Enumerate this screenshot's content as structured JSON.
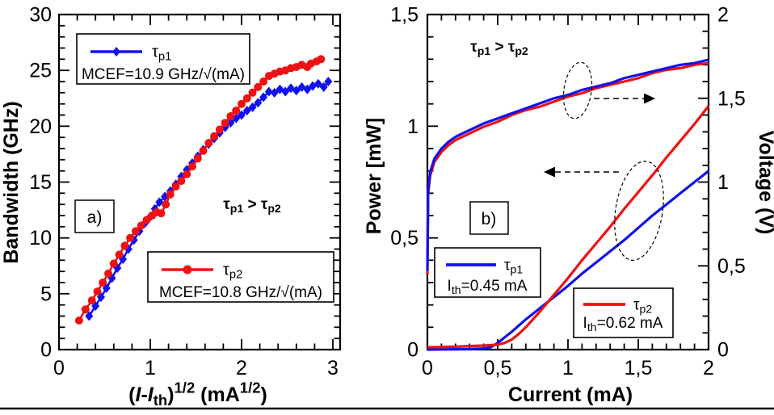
{
  "figure": {
    "description": "Two-panel laser characterization figure",
    "colors": {
      "series_blue": "#1111ee",
      "series_red": "#ee1111",
      "axis": "#000000",
      "background": "#ffffff"
    }
  },
  "chart_data": [
    {
      "id": "a",
      "type": "line",
      "panel_label": "a)",
      "ylabel": "Bandwidth (GHz)",
      "xlabel_plain": "(I-Ith)^1/2 (mA^1/2)",
      "xlabel_rich": [
        {
          "t": "("
        },
        {
          "t": "I",
          "m": "i"
        },
        {
          "t": "-"
        },
        {
          "t": "I",
          "m": "i"
        },
        {
          "t": "th",
          "m": "sub"
        },
        {
          "t": ")"
        },
        {
          "t": "1/2",
          "m": "sup"
        },
        {
          "t": " (mA"
        },
        {
          "t": "1/2",
          "m": "sup"
        },
        {
          "t": ")"
        }
      ],
      "annotation_plain": "τp1 > τp2",
      "annotation_rich": [
        {
          "t": "τ"
        },
        {
          "t": "p1",
          "m": "sub"
        },
        {
          "t": " > "
        },
        {
          "t": "τ"
        },
        {
          "t": "p2",
          "m": "sub"
        }
      ],
      "xlim": [
        0,
        3.08
      ],
      "ylim": [
        0,
        30
      ],
      "x_major_ticks": [
        0,
        1,
        2,
        3
      ],
      "x_tick_labels": [
        "0",
        "1",
        "2",
        "3"
      ],
      "x_minor_step": 0.2,
      "y_major_ticks": [
        0,
        5,
        10,
        15,
        20,
        25,
        30
      ],
      "y_tick_labels": [
        "0",
        "5",
        "10",
        "15",
        "20",
        "25",
        "30"
      ],
      "y_minor_step": 1,
      "grid": false,
      "legend_positions": [
        "upper-left",
        "lower-middle"
      ],
      "series": [
        {
          "name": "τp1",
          "name_rich": [
            {
              "t": "τ"
            },
            {
              "t": "p1",
              "m": "sub"
            }
          ],
          "note": "MCEF=10.9 GHz/√(mA)",
          "color": "#1111ee",
          "marker": "diamond",
          "points": [
            [
              0.33,
              3.0
            ],
            [
              0.4,
              3.9
            ],
            [
              0.46,
              4.7
            ],
            [
              0.52,
              5.5
            ],
            [
              0.58,
              6.4
            ],
            [
              0.64,
              7.3
            ],
            [
              0.7,
              8.1
            ],
            [
              0.76,
              9.0
            ],
            [
              0.82,
              9.8
            ],
            [
              0.88,
              10.6
            ],
            [
              0.94,
              11.3
            ],
            [
              1.0,
              11.9
            ],
            [
              1.05,
              12.6
            ],
            [
              1.1,
              13.2
            ],
            [
              1.16,
              13.7
            ],
            [
              1.22,
              14.2
            ],
            [
              1.28,
              14.8
            ],
            [
              1.34,
              15.5
            ],
            [
              1.4,
              16.1
            ],
            [
              1.46,
              16.7
            ],
            [
              1.52,
              17.3
            ],
            [
              1.58,
              17.9
            ],
            [
              1.64,
              18.4
            ],
            [
              1.7,
              18.9
            ],
            [
              1.76,
              19.4
            ],
            [
              1.82,
              19.9
            ],
            [
              1.88,
              20.3
            ],
            [
              1.94,
              20.7
            ],
            [
              2.0,
              21.0
            ],
            [
              2.06,
              21.4
            ],
            [
              2.12,
              21.7
            ],
            [
              2.18,
              22.1
            ],
            [
              2.24,
              22.6
            ],
            [
              2.3,
              23.1
            ],
            [
              2.36,
              23.0
            ],
            [
              2.42,
              23.3
            ],
            [
              2.48,
              23.1
            ],
            [
              2.54,
              23.4
            ],
            [
              2.6,
              23.2
            ],
            [
              2.66,
              23.5
            ],
            [
              2.72,
              23.3
            ],
            [
              2.78,
              23.6
            ],
            [
              2.84,
              23.8
            ],
            [
              2.9,
              23.5
            ],
            [
              2.95,
              24.0
            ]
          ]
        },
        {
          "name": "τp2",
          "name_rich": [
            {
              "t": "τ"
            },
            {
              "t": "p2",
              "m": "sub"
            }
          ],
          "note": "MCEF=10.8 GHz/√(mA)",
          "color": "#ee1111",
          "marker": "circle",
          "points": [
            [
              0.22,
              2.6
            ],
            [
              0.29,
              3.6
            ],
            [
              0.36,
              4.4
            ],
            [
              0.42,
              5.2
            ],
            [
              0.48,
              6.0
            ],
            [
              0.54,
              6.8
            ],
            [
              0.6,
              7.7
            ],
            [
              0.66,
              8.5
            ],
            [
              0.72,
              9.3
            ],
            [
              0.78,
              10.0
            ],
            [
              0.84,
              10.6
            ],
            [
              0.9,
              11.1
            ],
            [
              0.96,
              11.6
            ],
            [
              1.02,
              12.0
            ],
            [
              1.07,
              12.3
            ],
            [
              1.12,
              12.2
            ],
            [
              1.17,
              13.0
            ],
            [
              1.22,
              13.9
            ],
            [
              1.28,
              14.6
            ],
            [
              1.34,
              15.1
            ],
            [
              1.4,
              15.7
            ],
            [
              1.46,
              16.4
            ],
            [
              1.52,
              17.1
            ],
            [
              1.58,
              17.8
            ],
            [
              1.64,
              18.5
            ],
            [
              1.7,
              19.1
            ],
            [
              1.76,
              19.7
            ],
            [
              1.82,
              20.3
            ],
            [
              1.88,
              20.9
            ],
            [
              1.94,
              21.4
            ],
            [
              2.0,
              22.0
            ],
            [
              2.06,
              22.5
            ],
            [
              2.12,
              23.0
            ],
            [
              2.18,
              23.5
            ],
            [
              2.24,
              24.0
            ],
            [
              2.3,
              24.5
            ],
            [
              2.36,
              24.7
            ],
            [
              2.42,
              24.9
            ],
            [
              2.48,
              25.0
            ],
            [
              2.54,
              25.2
            ],
            [
              2.6,
              25.3
            ],
            [
              2.66,
              25.5
            ],
            [
              2.72,
              25.3
            ],
            [
              2.76,
              25.6
            ],
            [
              2.82,
              25.8
            ],
            [
              2.87,
              26.0
            ]
          ]
        }
      ]
    },
    {
      "id": "b",
      "type": "line",
      "panel_label": "b)",
      "xlabel": "Current (mA)",
      "ylabel_left": "Power [mW]",
      "ylabel_right": "Voltage (V)",
      "annotation_plain": "τp1 > τp2",
      "annotation_rich": [
        {
          "t": "τ"
        },
        {
          "t": "p1",
          "m": "sub"
        },
        {
          "t": " > "
        },
        {
          "t": "τ"
        },
        {
          "t": "p2",
          "m": "sub"
        }
      ],
      "xlim": [
        0,
        2
      ],
      "ylim_left": [
        0,
        1.5
      ],
      "ylim_right": [
        0,
        2
      ],
      "x_major_ticks": [
        0,
        0.5,
        1,
        1.5,
        2
      ],
      "x_tick_labels": [
        "0",
        "0,5",
        "1",
        "1,5",
        "2"
      ],
      "x_minor_step": 0.1,
      "y_left_major_ticks": [
        0,
        0.5,
        1,
        1.5
      ],
      "y_left_tick_labels": [
        "0",
        "0,5",
        "1",
        "1,5"
      ],
      "y_left_minor_step": 0.1,
      "y_right_major_ticks": [
        0,
        0.5,
        1,
        1.5,
        2
      ],
      "y_right_tick_labels": [
        "0",
        "0,5",
        "1",
        "1,5",
        "2"
      ],
      "y_right_minor_step": 0.1,
      "grid": false,
      "legend_positions": [
        "lower-left",
        "lower-right"
      ],
      "series": [
        {
          "id": "power-tau-p1",
          "axis": "left",
          "color": "#1111ee",
          "legend_name": "τp1",
          "legend_name_rich": [
            {
              "t": "τ"
            },
            {
              "t": "p1",
              "m": "sub"
            }
          ],
          "legend_note": "Ith=0.45 mA",
          "legend_note_rich": [
            {
              "t": "I"
            },
            {
              "t": "th",
              "m": "sub"
            },
            {
              "t": "=0.45 mA"
            }
          ],
          "threshold_mA": 0.45,
          "points": [
            [
              0,
              0
            ],
            [
              0.3,
              0.002
            ],
            [
              0.4,
              0.005
            ],
            [
              0.45,
              0.01
            ],
            [
              0.5,
              0.03
            ],
            [
              0.55,
              0.055
            ],
            [
              0.6,
              0.08
            ],
            [
              0.7,
              0.135
            ],
            [
              0.8,
              0.185
            ],
            [
              0.9,
              0.235
            ],
            [
              1.0,
              0.285
            ],
            [
              1.1,
              0.34
            ],
            [
              1.2,
              0.39
            ],
            [
              1.3,
              0.44
            ],
            [
              1.4,
              0.49
            ],
            [
              1.5,
              0.545
            ],
            [
              1.6,
              0.6
            ],
            [
              1.7,
              0.65
            ],
            [
              1.8,
              0.7
            ],
            [
              1.9,
              0.75
            ],
            [
              2.0,
              0.8
            ]
          ]
        },
        {
          "id": "power-tau-p2",
          "axis": "left",
          "color": "#ee1111",
          "legend_name": "τp2",
          "legend_name_rich": [
            {
              "t": "τ"
            },
            {
              "t": "p2",
              "m": "sub"
            }
          ],
          "legend_note": "Ith=0.62 mA",
          "legend_note_rich": [
            {
              "t": "I"
            },
            {
              "t": "th",
              "m": "sub"
            },
            {
              "t": "=0.62 mA"
            }
          ],
          "threshold_mA": 0.62,
          "points": [
            [
              0,
              0.01
            ],
            [
              0.2,
              0.013
            ],
            [
              0.4,
              0.018
            ],
            [
              0.5,
              0.022
            ],
            [
              0.55,
              0.03
            ],
            [
              0.6,
              0.045
            ],
            [
              0.65,
              0.07
            ],
            [
              0.7,
              0.1
            ],
            [
              0.8,
              0.17
            ],
            [
              0.9,
              0.245
            ],
            [
              1.0,
              0.32
            ],
            [
              1.1,
              0.4
            ],
            [
              1.2,
              0.475
            ],
            [
              1.3,
              0.55
            ],
            [
              1.4,
              0.63
            ],
            [
              1.5,
              0.705
            ],
            [
              1.6,
              0.78
            ],
            [
              1.7,
              0.86
            ],
            [
              1.8,
              0.935
            ],
            [
              1.9,
              1.01
            ],
            [
              2.0,
              1.09
            ]
          ]
        },
        {
          "id": "voltage-tau-p2",
          "axis": "right",
          "color": "#ee1111",
          "points": [
            [
              0,
              0.45
            ],
            [
              0.005,
              0.93
            ],
            [
              0.02,
              1.04
            ],
            [
              0.05,
              1.12
            ],
            [
              0.1,
              1.18
            ],
            [
              0.15,
              1.22
            ],
            [
              0.2,
              1.25
            ],
            [
              0.3,
              1.29
            ],
            [
              0.4,
              1.33
            ],
            [
              0.5,
              1.36
            ],
            [
              0.6,
              1.4
            ],
            [
              0.7,
              1.43
            ],
            [
              0.8,
              1.45
            ],
            [
              0.9,
              1.48
            ],
            [
              1.0,
              1.51
            ],
            [
              1.1,
              1.53
            ],
            [
              1.2,
              1.56
            ],
            [
              1.3,
              1.58
            ],
            [
              1.4,
              1.6
            ],
            [
              1.5,
              1.62
            ],
            [
              1.6,
              1.65
            ],
            [
              1.7,
              1.67
            ],
            [
              1.8,
              1.68
            ],
            [
              1.9,
              1.7
            ],
            [
              2.0,
              1.71
            ]
          ]
        },
        {
          "id": "voltage-tau-p1",
          "axis": "right",
          "color": "#1111ee",
          "points": [
            [
              0,
              0.47
            ],
            [
              0.005,
              0.95
            ],
            [
              0.02,
              1.06
            ],
            [
              0.05,
              1.14
            ],
            [
              0.1,
              1.2
            ],
            [
              0.15,
              1.24
            ],
            [
              0.2,
              1.27
            ],
            [
              0.3,
              1.31
            ],
            [
              0.4,
              1.35
            ],
            [
              0.5,
              1.38
            ],
            [
              0.6,
              1.41
            ],
            [
              0.7,
              1.44
            ],
            [
              0.8,
              1.47
            ],
            [
              0.9,
              1.5
            ],
            [
              1.0,
              1.52
            ],
            [
              1.1,
              1.55
            ],
            [
              1.2,
              1.57
            ],
            [
              1.3,
              1.59
            ],
            [
              1.4,
              1.62
            ],
            [
              1.5,
              1.64
            ],
            [
              1.6,
              1.66
            ],
            [
              1.7,
              1.68
            ],
            [
              1.8,
              1.7
            ],
            [
              1.9,
              1.71
            ],
            [
              2.0,
              1.73
            ]
          ]
        }
      ]
    }
  ]
}
